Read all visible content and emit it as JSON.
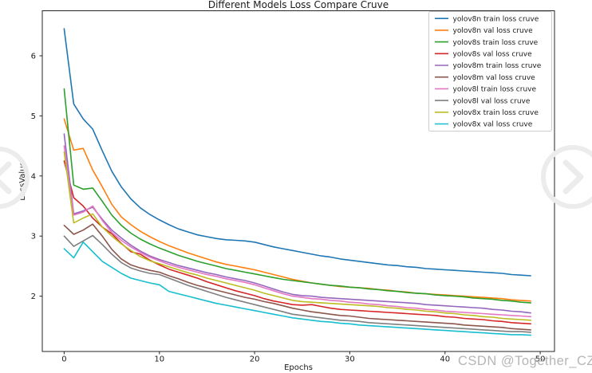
{
  "figure": {
    "title": "Different Models Loss Compare Cruve",
    "xlabel": "Epochs",
    "ylabel": "LossValue",
    "background": "#ffffff",
    "axis_color": "#262626"
  },
  "watermark": {
    "text": "CSDN @Together_CZ",
    "color": "#a9a9a9"
  },
  "carousel": {
    "prev_icon": "chevron-left-circle",
    "next_icon": "chevron-right-circle",
    "color": "#ececec"
  },
  "chart_data": {
    "type": "line",
    "title": "Different Models Loss Compare Cruve",
    "xlabel": "Epochs",
    "ylabel": "LossValue",
    "grid": false,
    "legend_position": "upper right",
    "xlim": [
      -2.3,
      51.5
    ],
    "ylim": [
      1.08,
      6.75
    ],
    "x_ticks": [
      0,
      10,
      20,
      30,
      40,
      50
    ],
    "y_ticks": [
      2,
      3,
      4,
      5,
      6
    ],
    "x": [
      0,
      1,
      2,
      3,
      4,
      5,
      6,
      7,
      8,
      9,
      10,
      11,
      12,
      13,
      14,
      15,
      16,
      17,
      18,
      19,
      20,
      21,
      22,
      23,
      24,
      25,
      26,
      27,
      28,
      29,
      30,
      31,
      32,
      33,
      34,
      35,
      36,
      37,
      38,
      39,
      40,
      41,
      42,
      43,
      44,
      45,
      46,
      47,
      48,
      49
    ],
    "series": [
      {
        "name": "yolov8n-train",
        "label": "yolov8n train loss cruve",
        "color": "#1f77b4",
        "values": [
          6.45,
          5.2,
          4.95,
          4.78,
          4.42,
          4.08,
          3.82,
          3.62,
          3.47,
          3.36,
          3.27,
          3.19,
          3.12,
          3.07,
          3.02,
          2.99,
          2.96,
          2.94,
          2.93,
          2.92,
          2.9,
          2.86,
          2.82,
          2.79,
          2.76,
          2.73,
          2.7,
          2.67,
          2.65,
          2.62,
          2.6,
          2.58,
          2.56,
          2.54,
          2.52,
          2.51,
          2.49,
          2.48,
          2.46,
          2.45,
          2.44,
          2.43,
          2.42,
          2.41,
          2.4,
          2.39,
          2.38,
          2.36,
          2.35,
          2.34
        ]
      },
      {
        "name": "yolov8n-val",
        "label": "yolov8n val loss cruve",
        "color": "#ff7f0e",
        "values": [
          4.95,
          4.43,
          4.46,
          4.1,
          3.82,
          3.53,
          3.32,
          3.19,
          3.08,
          2.99,
          2.91,
          2.84,
          2.78,
          2.72,
          2.67,
          2.62,
          2.57,
          2.53,
          2.5,
          2.47,
          2.44,
          2.4,
          2.36,
          2.32,
          2.28,
          2.25,
          2.22,
          2.2,
          2.18,
          2.16,
          2.15,
          2.14,
          2.13,
          2.11,
          2.1,
          2.08,
          2.07,
          2.05,
          2.04,
          2.03,
          2.02,
          2.01,
          2.0,
          1.99,
          1.98,
          1.97,
          1.96,
          1.94,
          1.93,
          1.92
        ]
      },
      {
        "name": "yolov8s-train",
        "label": "yolov8s train loss cruve",
        "color": "#2ca02c",
        "values": [
          5.45,
          3.85,
          3.78,
          3.8,
          3.58,
          3.35,
          3.18,
          3.05,
          2.95,
          2.87,
          2.8,
          2.74,
          2.68,
          2.63,
          2.58,
          2.54,
          2.5,
          2.46,
          2.43,
          2.4,
          2.37,
          2.34,
          2.31,
          2.28,
          2.26,
          2.24,
          2.22,
          2.2,
          2.18,
          2.17,
          2.15,
          2.14,
          2.12,
          2.11,
          2.09,
          2.08,
          2.06,
          2.05,
          2.04,
          2.02,
          2.01,
          2.0,
          1.99,
          1.97,
          1.96,
          1.95,
          1.93,
          1.92,
          1.9,
          1.89
        ]
      },
      {
        "name": "yolov8s-val",
        "label": "yolov8s val loss cruve",
        "color": "#d62728",
        "values": [
          4.25,
          3.64,
          3.5,
          3.3,
          3.15,
          3.04,
          2.88,
          2.74,
          2.7,
          2.6,
          2.52,
          2.45,
          2.4,
          2.35,
          2.3,
          2.24,
          2.19,
          2.14,
          2.09,
          2.05,
          2.01,
          1.96,
          1.92,
          1.89,
          1.86,
          1.85,
          1.86,
          1.83,
          1.8,
          1.78,
          1.77,
          1.76,
          1.75,
          1.74,
          1.73,
          1.72,
          1.71,
          1.7,
          1.69,
          1.68,
          1.66,
          1.65,
          1.63,
          1.62,
          1.61,
          1.59,
          1.58,
          1.56,
          1.55,
          1.54
        ]
      },
      {
        "name": "yolov8m-train",
        "label": "yolov8m train loss cruve",
        "color": "#9467bd",
        "values": [
          4.7,
          3.37,
          3.42,
          3.48,
          3.28,
          3.1,
          2.97,
          2.85,
          2.75,
          2.67,
          2.61,
          2.56,
          2.51,
          2.47,
          2.43,
          2.39,
          2.36,
          2.32,
          2.29,
          2.26,
          2.22,
          2.17,
          2.12,
          2.07,
          2.03,
          2.01,
          2.0,
          1.98,
          1.97,
          1.96,
          1.95,
          1.94,
          1.93,
          1.92,
          1.91,
          1.9,
          1.89,
          1.88,
          1.86,
          1.85,
          1.84,
          1.83,
          1.82,
          1.81,
          1.8,
          1.78,
          1.77,
          1.75,
          1.74,
          1.72
        ]
      },
      {
        "name": "yolov8m-val",
        "label": "yolov8m val loss cruve",
        "color": "#8c564b",
        "values": [
          3.18,
          3.03,
          3.1,
          3.2,
          3.0,
          2.78,
          2.62,
          2.52,
          2.47,
          2.43,
          2.4,
          2.34,
          2.29,
          2.23,
          2.18,
          2.14,
          2.1,
          2.06,
          2.02,
          1.98,
          1.95,
          1.91,
          1.88,
          1.84,
          1.8,
          1.77,
          1.74,
          1.72,
          1.7,
          1.68,
          1.67,
          1.65,
          1.63,
          1.62,
          1.61,
          1.6,
          1.59,
          1.58,
          1.57,
          1.56,
          1.55,
          1.54,
          1.52,
          1.51,
          1.5,
          1.49,
          1.48,
          1.46,
          1.45,
          1.44
        ]
      },
      {
        "name": "yolov8l-train",
        "label": "yolov8l train loss cruve",
        "color": "#e377c2",
        "values": [
          4.5,
          3.35,
          3.4,
          3.5,
          3.26,
          3.06,
          2.93,
          2.82,
          2.73,
          2.65,
          2.59,
          2.53,
          2.48,
          2.44,
          2.4,
          2.36,
          2.33,
          2.29,
          2.26,
          2.23,
          2.19,
          2.14,
          2.09,
          2.04,
          2.0,
          1.98,
          1.96,
          1.95,
          1.93,
          1.92,
          1.9,
          1.89,
          1.87,
          1.86,
          1.84,
          1.83,
          1.81,
          1.8,
          1.78,
          1.77,
          1.75,
          1.74,
          1.73,
          1.72,
          1.71,
          1.7,
          1.69,
          1.68,
          1.67,
          1.66
        ]
      },
      {
        "name": "yolov8l-val",
        "label": "yolov8l val loss cruve",
        "color": "#7f7f7f",
        "values": [
          3.0,
          2.83,
          2.92,
          3.01,
          2.86,
          2.7,
          2.56,
          2.47,
          2.42,
          2.38,
          2.36,
          2.3,
          2.24,
          2.18,
          2.13,
          2.08,
          2.03,
          1.98,
          1.94,
          1.9,
          1.86,
          1.82,
          1.78,
          1.74,
          1.7,
          1.68,
          1.66,
          1.64,
          1.62,
          1.6,
          1.59,
          1.58,
          1.56,
          1.55,
          1.54,
          1.53,
          1.52,
          1.51,
          1.5,
          1.49,
          1.48,
          1.47,
          1.46,
          1.45,
          1.44,
          1.43,
          1.42,
          1.41,
          1.41,
          1.4
        ]
      },
      {
        "name": "yolov8x-train",
        "label": "yolov8x train loss cruve",
        "color": "#bcbd22",
        "values": [
          4.4,
          3.22,
          3.3,
          3.37,
          3.15,
          3.0,
          2.87,
          2.76,
          2.66,
          2.59,
          2.54,
          2.49,
          2.44,
          2.39,
          2.35,
          2.3,
          2.26,
          2.22,
          2.18,
          2.14,
          2.1,
          2.05,
          2.01,
          1.97,
          1.93,
          1.91,
          1.9,
          1.89,
          1.88,
          1.87,
          1.86,
          1.85,
          1.84,
          1.83,
          1.81,
          1.8,
          1.78,
          1.77,
          1.75,
          1.74,
          1.72,
          1.71,
          1.69,
          1.68,
          1.66,
          1.65,
          1.63,
          1.62,
          1.61,
          1.6
        ]
      },
      {
        "name": "yolov8x-val",
        "label": "yolov8x val loss cruve",
        "color": "#17becf",
        "values": [
          2.79,
          2.64,
          2.9,
          2.74,
          2.58,
          2.48,
          2.38,
          2.3,
          2.26,
          2.22,
          2.19,
          2.08,
          2.04,
          2.0,
          1.96,
          1.92,
          1.88,
          1.85,
          1.82,
          1.79,
          1.76,
          1.73,
          1.7,
          1.67,
          1.64,
          1.62,
          1.6,
          1.58,
          1.57,
          1.55,
          1.54,
          1.52,
          1.51,
          1.5,
          1.49,
          1.48,
          1.47,
          1.46,
          1.45,
          1.44,
          1.43,
          1.42,
          1.41,
          1.4,
          1.39,
          1.38,
          1.37,
          1.36,
          1.36,
          1.35
        ]
      }
    ]
  }
}
